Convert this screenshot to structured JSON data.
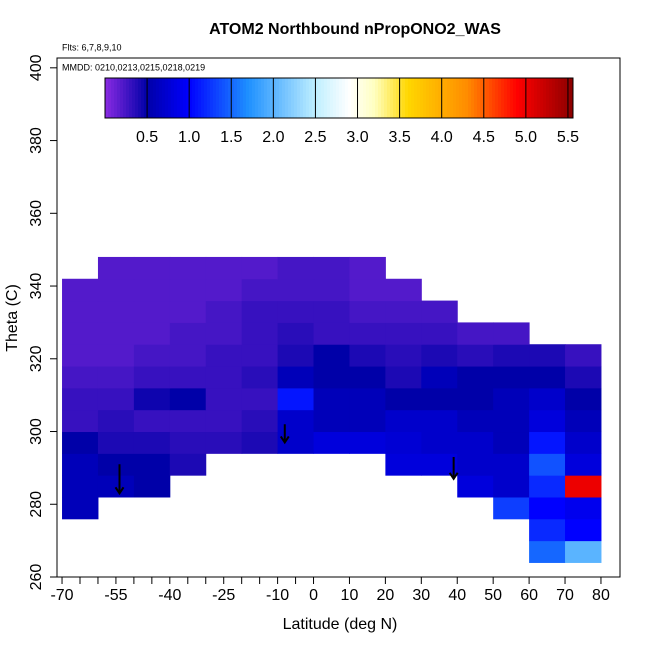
{
  "chart_data": {
    "type": "heatmap",
    "title": "ATOM2 Northbound nPropONO2_WAS",
    "annotations": [
      "Flts: 6,7,8,9,10",
      "MMDD: 0210,0213,0215,0218,0219"
    ],
    "x_label": "Latitude (deg N)",
    "y_label": "Theta (C)",
    "xlim": [
      -71.4,
      85.3
    ],
    "ylim": [
      260,
      402.7
    ],
    "xticks": [
      -70,
      -55,
      -40,
      -25,
      -10,
      0,
      10,
      20,
      30,
      40,
      50,
      60,
      70,
      80
    ],
    "xticks_minor": [
      -65,
      -60,
      -50,
      -45,
      -35,
      -30,
      -20,
      -15,
      -5
    ],
    "yticks": [
      260,
      280,
      300,
      320,
      340,
      360,
      380,
      400
    ],
    "x_edges": [
      -70,
      -60,
      -50,
      -40,
      -30,
      -20,
      -10,
      0,
      10,
      20,
      30,
      40,
      50,
      60,
      70,
      80
    ],
    "y_edges": [
      264,
      270,
      276,
      282,
      288,
      294,
      300,
      306,
      312,
      318,
      324,
      330,
      336,
      342,
      348
    ],
    "values": [
      [
        null,
        null,
        null,
        null,
        null,
        null,
        null,
        null,
        null,
        null,
        null,
        null,
        null,
        1.5,
        2.0
      ],
      [
        null,
        null,
        null,
        null,
        null,
        null,
        null,
        null,
        null,
        null,
        null,
        null,
        null,
        1.2,
        1.0
      ],
      [
        0.6,
        null,
        null,
        null,
        null,
        null,
        null,
        null,
        null,
        null,
        null,
        null,
        1.3,
        1.0,
        0.9
      ],
      [
        0.6,
        0.6,
        0.5,
        null,
        null,
        null,
        null,
        null,
        null,
        null,
        null,
        0.8,
        0.7,
        1.2,
        5.0
      ],
      [
        0.6,
        0.5,
        0.5,
        0.4,
        null,
        null,
        null,
        null,
        null,
        0.8,
        0.8,
        0.7,
        0.7,
        1.4,
        0.8
      ],
      [
        0.5,
        0.4,
        0.4,
        0.35,
        0.35,
        0.4,
        0.7,
        0.8,
        0.8,
        0.75,
        0.7,
        0.7,
        0.6,
        1.1,
        0.7
      ],
      [
        0.3,
        0.35,
        0.3,
        0.3,
        0.3,
        0.35,
        0.7,
        0.6,
        0.6,
        0.7,
        0.7,
        0.6,
        0.6,
        0.8,
        0.6
      ],
      [
        0.3,
        0.3,
        0.45,
        0.5,
        0.3,
        0.3,
        1.1,
        0.6,
        0.6,
        0.5,
        0.5,
        0.5,
        0.6,
        0.7,
        0.5
      ],
      [
        0.25,
        0.25,
        0.3,
        0.3,
        0.3,
        0.35,
        0.6,
        0.5,
        0.5,
        0.4,
        0.6,
        0.5,
        0.5,
        0.5,
        0.4
      ],
      [
        0.2,
        0.2,
        0.25,
        0.25,
        0.3,
        0.3,
        0.4,
        0.5,
        0.4,
        0.35,
        0.4,
        0.35,
        0.4,
        0.4,
        0.3
      ],
      [
        0.2,
        0.2,
        0.2,
        0.25,
        0.25,
        0.3,
        0.35,
        0.3,
        0.3,
        0.3,
        0.3,
        0.25,
        0.25,
        null,
        null
      ],
      [
        0.2,
        0.2,
        0.2,
        0.2,
        0.25,
        0.3,
        0.3,
        0.3,
        0.25,
        0.25,
        0.25,
        null,
        null,
        null,
        null
      ],
      [
        0.2,
        0.2,
        0.2,
        0.2,
        0.2,
        0.25,
        0.25,
        0.25,
        0.2,
        0.2,
        null,
        null,
        null,
        null,
        null
      ],
      [
        null,
        0.2,
        0.2,
        0.2,
        0.2,
        0.2,
        0.25,
        0.25,
        0.2,
        null,
        null,
        null,
        null,
        null,
        null
      ]
    ],
    "colorbar_lim": [
      0,
      5.56
    ],
    "colorbar_ticks": [
      0.5,
      1.0,
      1.5,
      2.0,
      2.5,
      3.0,
      3.5,
      4.0,
      4.5,
      5.0,
      5.5
    ],
    "colorscale": [
      {
        "value": 0,
        "color": "#8a2be2"
      },
      {
        "value": 0.5,
        "color": "#0000a8"
      },
      {
        "value": 1.0,
        "color": "#0000ff"
      },
      {
        "value": 1.7,
        "color": "#1e90ff"
      },
      {
        "value": 2.5,
        "color": "#bfefff"
      },
      {
        "value": 2.9,
        "color": "#ffffff"
      },
      {
        "value": 3.2,
        "color": "#ffffc0"
      },
      {
        "value": 3.6,
        "color": "#ffd700"
      },
      {
        "value": 4.3,
        "color": "#ff8c00"
      },
      {
        "value": 4.9,
        "color": "#ff0000"
      },
      {
        "value": 5.56,
        "color": "#8b0000"
      }
    ],
    "arrows": [
      {
        "x": -54,
        "y_from": 291,
        "y_to": 283
      },
      {
        "x": -8,
        "y_from": 302,
        "y_to": 297
      },
      {
        "x": 39,
        "y_from": 293,
        "y_to": 287
      }
    ]
  }
}
